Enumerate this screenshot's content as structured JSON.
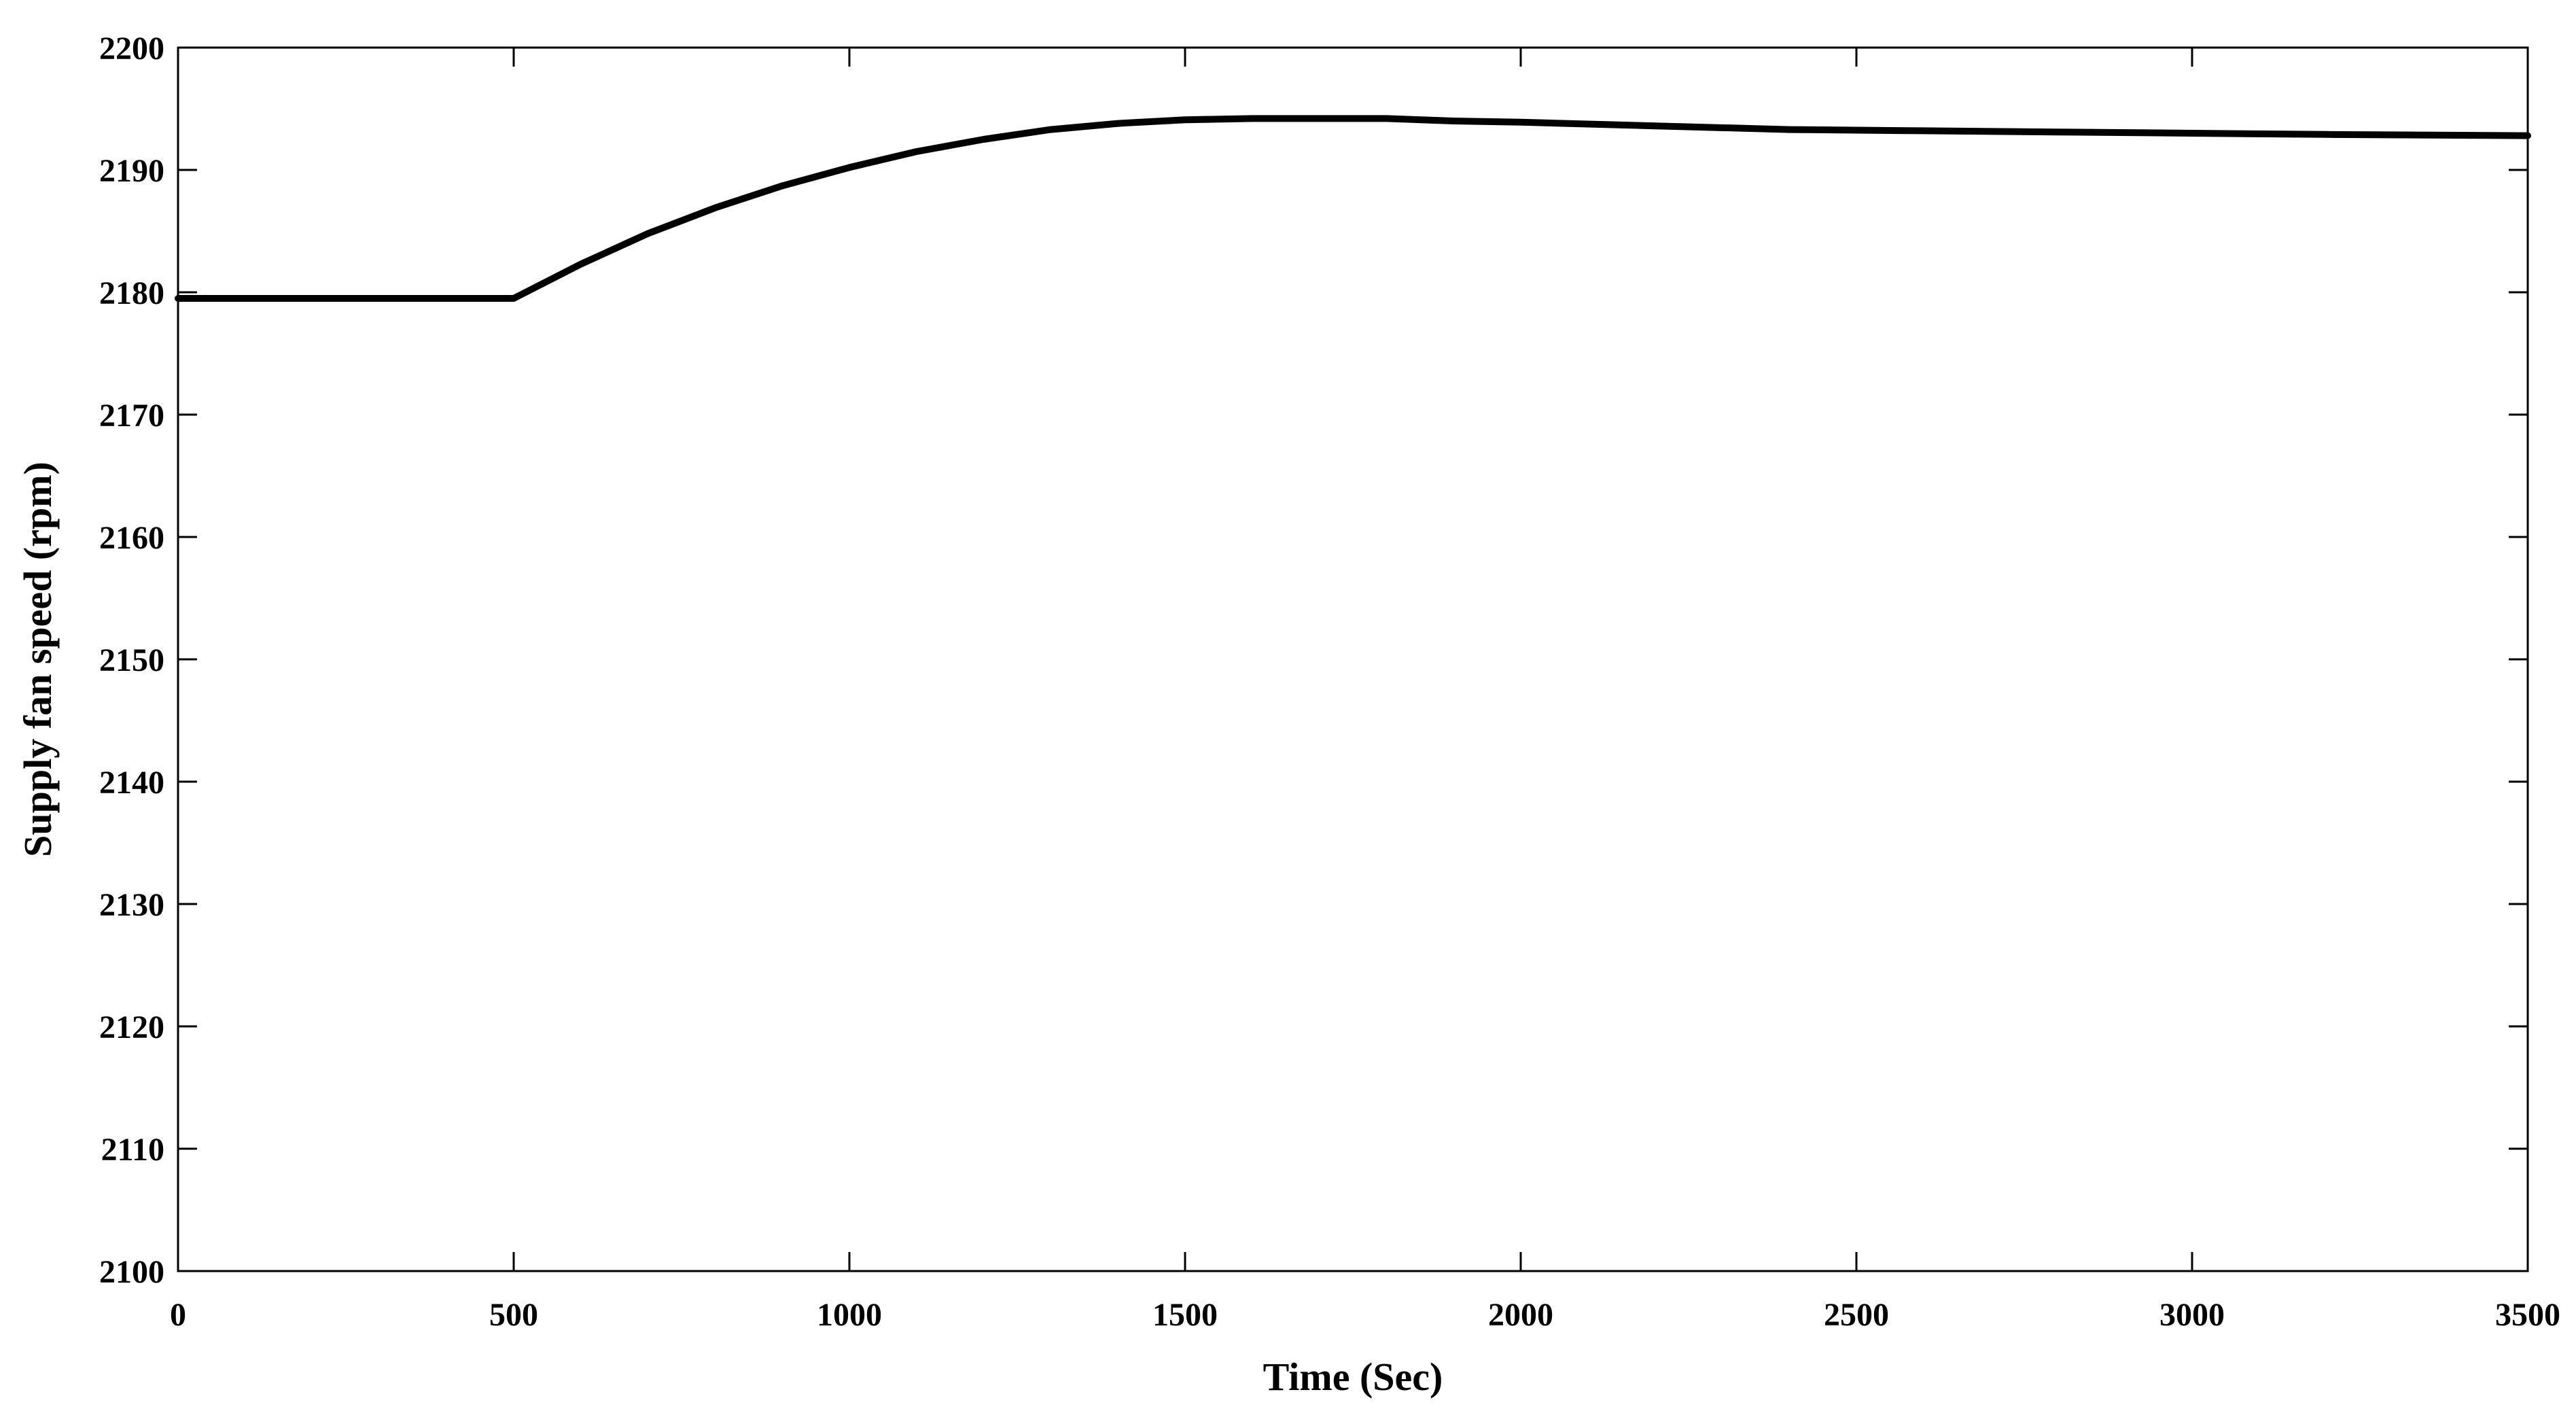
{
  "chart_data": {
    "type": "line",
    "title": "",
    "xlabel": "Time (Sec)",
    "ylabel": "Supply fan speed (rpm)",
    "xlim": [
      0,
      3500
    ],
    "ylim": [
      2100,
      2200
    ],
    "xticks": [
      0,
      500,
      1000,
      1500,
      2000,
      2500,
      3000,
      3500
    ],
    "yticks": [
      2100,
      2110,
      2120,
      2130,
      2140,
      2150,
      2160,
      2170,
      2180,
      2190,
      2200
    ],
    "xtick_labels": [
      "0",
      "500",
      "1000",
      "1500",
      "2000",
      "2500",
      "3000",
      "3500"
    ],
    "ytick_labels": [
      "2100",
      "2110",
      "2120",
      "2130",
      "2140",
      "2150",
      "2160",
      "2170",
      "2180",
      "2190",
      "2200"
    ],
    "grid": false,
    "series": [
      {
        "color": "#000000",
        "x": [
          0,
          500,
          600,
          700,
          800,
          900,
          1000,
          1100,
          1200,
          1300,
          1400,
          1500,
          1600,
          1700,
          1800,
          1900,
          2000,
          2200,
          2400,
          2600,
          2800,
          3000,
          3200,
          3500
        ],
        "y": [
          2179.5,
          2179.5,
          2182.3,
          2184.8,
          2186.9,
          2188.7,
          2190.2,
          2191.5,
          2192.5,
          2193.3,
          2193.8,
          2194.1,
          2194.2,
          2194.2,
          2194.2,
          2194.0,
          2193.9,
          2193.6,
          2193.3,
          2193.2,
          2193.1,
          2193.0,
          2192.9,
          2192.8
        ]
      }
    ]
  }
}
